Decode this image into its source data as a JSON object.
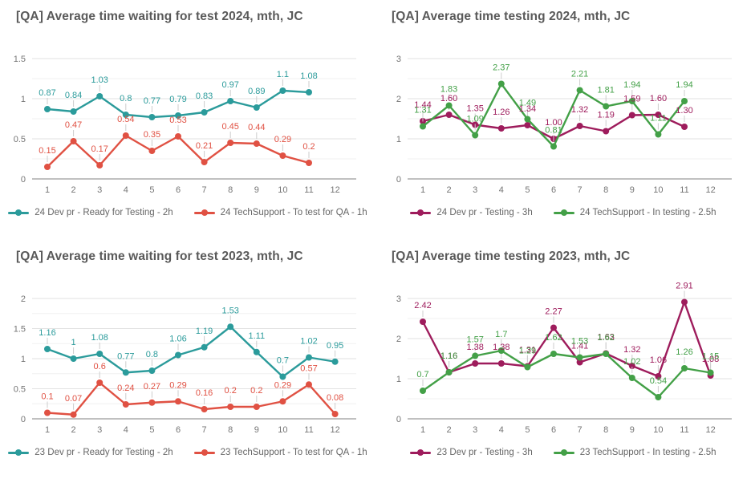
{
  "page": {
    "background": "#ffffff"
  },
  "chart_data": [
    {
      "type": "line",
      "title": "[QA] Average time waiting for test 2024, mth, JC",
      "x_categories": [
        "1",
        "2",
        "3",
        "4",
        "5",
        "6",
        "7",
        "8",
        "9",
        "10",
        "11",
        "12"
      ],
      "y_ticks": [
        {
          "label": "0",
          "value": 0
        },
        {
          "label": "0.5",
          "value": 0.5
        },
        {
          "label": "1",
          "value": 1
        },
        {
          "label": "1.5",
          "value": 1.5
        }
      ],
      "ylim": [
        0,
        1.5
      ],
      "minor_step": 0.25,
      "grid": "on",
      "legend_position": "bottom",
      "series": [
        {
          "name": "24 Dev pr - Ready for Testing - 2h",
          "color": "#2b9b9b",
          "values": [
            "0.87",
            "0.84",
            "1.03",
            "0.8",
            "0.77",
            "0.79",
            "0.83",
            "0.97",
            "0.89",
            "1.1",
            "1.08"
          ]
        },
        {
          "name": "24 TechSupport - To test for QA - 1h",
          "color": "#e05143",
          "values": [
            "0.15",
            "0.47",
            "0.17",
            "0.54",
            "0.35",
            "0.53",
            "0.21",
            "0.45",
            "0.44",
            "0.29",
            "0.2"
          ]
        }
      ]
    },
    {
      "type": "line",
      "title": "[QA] Average time testing 2024, mth, JC",
      "x_categories": [
        "1",
        "2",
        "3",
        "4",
        "5",
        "6",
        "7",
        "8",
        "9",
        "10",
        "11",
        "12"
      ],
      "y_ticks": [
        {
          "label": "0",
          "value": 0
        },
        {
          "label": "1",
          "value": 1
        },
        {
          "label": "2",
          "value": 2
        },
        {
          "label": "3",
          "value": 3
        }
      ],
      "ylim": [
        0,
        3
      ],
      "minor_step": 0.5,
      "grid": "on",
      "legend_position": "bottom",
      "series": [
        {
          "name": "24 Dev pr - Testing - 3h",
          "color": "#9e1c5c",
          "values": [
            "1.44",
            "1.60",
            "1.35",
            "1.26",
            "1.34",
            "1.00",
            "1.32",
            "1.19",
            "1.59",
            "1.60",
            "1.30"
          ]
        },
        {
          "name": "24 TechSupport - In testing - 2.5h",
          "color": "#43a047",
          "values": [
            "1.31",
            "1.83",
            "1.09",
            "2.37",
            "1.49",
            "0.81",
            "2.21",
            "1.81",
            "1.94",
            "1.11",
            "1.94"
          ]
        }
      ]
    },
    {
      "type": "line",
      "title": "[QA] Average time waiting for test 2023, mth, JC",
      "x_categories": [
        "1",
        "2",
        "3",
        "4",
        "5",
        "6",
        "7",
        "8",
        "9",
        "10",
        "11",
        "12"
      ],
      "y_ticks": [
        {
          "label": "0",
          "value": 0
        },
        {
          "label": "0.5",
          "value": 0.5
        },
        {
          "label": "1",
          "value": 1
        },
        {
          "label": "1.5",
          "value": 1.5
        },
        {
          "label": "2",
          "value": 2
        }
      ],
      "ylim": [
        0,
        2
      ],
      "minor_step": 0.25,
      "grid": "on",
      "legend_position": "bottom",
      "series": [
        {
          "name": "23 Dev pr - Ready for Testing - 2h",
          "color": "#2b9b9b",
          "values": [
            "1.16",
            "1",
            "1.08",
            "0.77",
            "0.8",
            "1.06",
            "1.19",
            "1.53",
            "1.11",
            "0.7",
            "1.02",
            "0.95"
          ]
        },
        {
          "name": "23 TechSupport - To test for QA - 1h",
          "color": "#e05143",
          "values": [
            "0.1",
            "0.07",
            "0.6",
            "0.24",
            "0.27",
            "0.29",
            "0.16",
            "0.2",
            "0.2",
            "0.29",
            "0.57",
            "0.08"
          ]
        }
      ]
    },
    {
      "type": "line",
      "title": "[QA] Average time testing 2023, mth, JC",
      "x_categories": [
        "1",
        "2",
        "3",
        "4",
        "5",
        "6",
        "7",
        "8",
        "9",
        "10",
        "11",
        "12"
      ],
      "y_ticks": [
        {
          "label": "0",
          "value": 0
        },
        {
          "label": "1",
          "value": 1
        },
        {
          "label": "2",
          "value": 2
        },
        {
          "label": "3",
          "value": 3
        }
      ],
      "ylim": [
        0,
        3
      ],
      "minor_step": 0.5,
      "grid": "on",
      "legend_position": "bottom",
      "series": [
        {
          "name": "23 Dev pr - Testing - 3h",
          "color": "#9e1c5c",
          "values": [
            "2.42",
            "1.16",
            "1.38",
            "1.38",
            "1.31",
            "2.27",
            "1.41",
            "1.63",
            "1.32",
            "1.06",
            "2.91",
            "1.08"
          ]
        },
        {
          "name": "23 TechSupport - In testing - 2.5h",
          "color": "#43a047",
          "values": [
            "0.7",
            "1.16",
            "1.57",
            "1.7",
            "1.29",
            "1.62",
            "1.53",
            "1.62",
            "1.02",
            "0.54",
            "1.26",
            "1.15"
          ]
        }
      ]
    }
  ]
}
